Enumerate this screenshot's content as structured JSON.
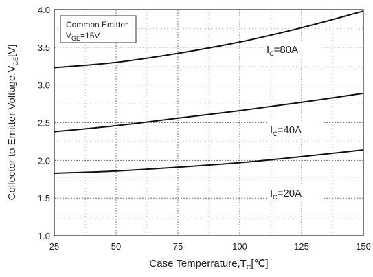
{
  "chart_data": {
    "type": "line",
    "title": "",
    "xlabel": {
      "main": "Case Temperrature,T",
      "sub": "C",
      "unit": "[℃]"
    },
    "ylabel": {
      "main": "Collector to Emitter Voltage,V",
      "sub": "CE",
      "unit": "[V]"
    },
    "xlim": [
      25,
      150
    ],
    "ylim": [
      1.0,
      4.0
    ],
    "x_ticks": [
      25,
      50,
      75,
      100,
      125,
      150
    ],
    "x_tick_labels": [
      "25",
      "50",
      "75",
      "100",
      "125",
      "150"
    ],
    "y_ticks": [
      1.0,
      1.5,
      2.0,
      2.5,
      3.0,
      3.5,
      4.0
    ],
    "y_tick_labels": [
      "1.0",
      "1.5",
      "2.0",
      "2.5",
      "3.0",
      "3.5",
      "4.0"
    ],
    "grid": true,
    "legend": {
      "line1": "Common Emitter",
      "line2_main": "V",
      "line2_sub": "GE",
      "line2_rest": "=15V",
      "placement": "top-left"
    },
    "series": [
      {
        "label_main": "I",
        "label_sub": "C",
        "label_rest": "=80A",
        "x": [
          25,
          50,
          75,
          100,
          125,
          150
        ],
        "y": [
          3.23,
          3.3,
          3.42,
          3.57,
          3.76,
          3.98
        ]
      },
      {
        "label_main": "I",
        "label_sub": "C",
        "label_rest": "=40A",
        "x": [
          25,
          50,
          75,
          100,
          125,
          150
        ],
        "y": [
          2.38,
          2.46,
          2.56,
          2.66,
          2.77,
          2.89
        ]
      },
      {
        "label_main": "I",
        "label_sub": "C",
        "label_rest": "=20A",
        "x": [
          25,
          50,
          75,
          100,
          125,
          150
        ],
        "y": [
          1.83,
          1.86,
          1.91,
          1.97,
          2.05,
          2.14
        ]
      }
    ]
  }
}
